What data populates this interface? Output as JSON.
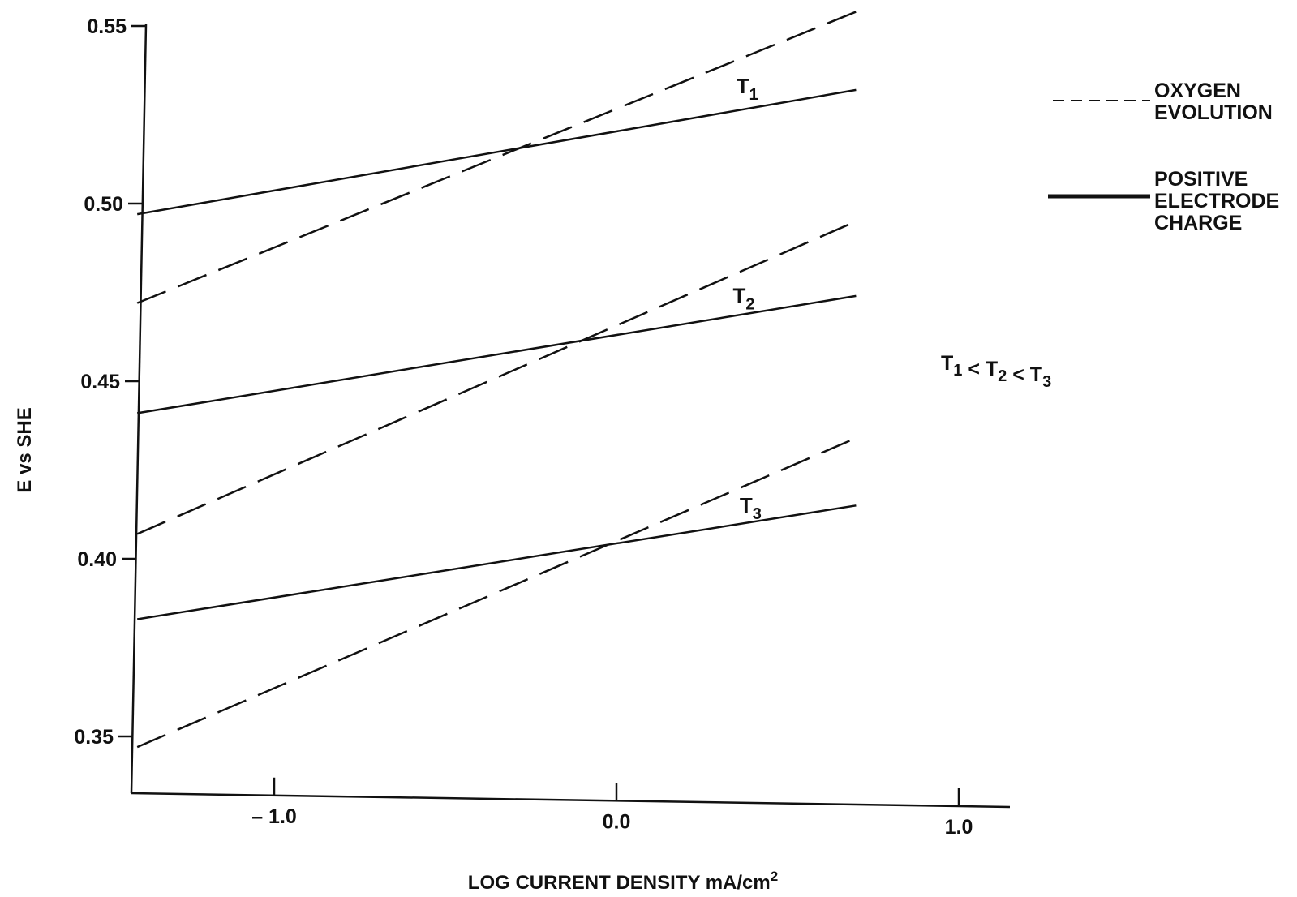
{
  "chart_data": {
    "type": "line",
    "xlabel": "LOG CURRENT DENSITY mA/cm",
    "xlabel_superscript": "2",
    "ylabel": "E vs SHE",
    "xlim": [
      -1.4,
      1.1
    ],
    "ylim": [
      0.345,
      0.55
    ],
    "x_ticks": [
      -1.0,
      0.0,
      1.0
    ],
    "x_tick_labels": [
      "– 1.0",
      "0.0",
      "1.0"
    ],
    "y_ticks": [
      0.35,
      0.4,
      0.45,
      0.5,
      0.55
    ],
    "y_tick_labels": [
      "0.35",
      "0.40",
      "0.45",
      "0.50",
      "0.55"
    ],
    "grid": false,
    "legend_placement": "right",
    "legend": [
      {
        "style": "dashed",
        "lines": [
          "OXYGEN",
          "EVOLUTION"
        ]
      },
      {
        "style": "solid",
        "lines": [
          "POSITIVE",
          "ELECTRODE",
          "CHARGE"
        ]
      }
    ],
    "annotation": {
      "parts": [
        {
          "t": "T",
          "sub": "1"
        },
        {
          "t": " < T",
          "sub": "2"
        },
        {
          "t": " < T",
          "sub": "3"
        }
      ]
    },
    "series": [
      {
        "name": "T1",
        "label": "T",
        "label_sub": "1",
        "style": "solid",
        "x": [
          -1.4,
          0.7
        ],
        "y": [
          0.497,
          0.532
        ],
        "label_at": [
          0.35,
          0.531
        ]
      },
      {
        "name": "T1",
        "style": "dashed",
        "x": [
          -1.4,
          0.7
        ],
        "y": [
          0.472,
          0.554
        ]
      },
      {
        "name": "T2",
        "label": "T",
        "label_sub": "2",
        "style": "solid",
        "x": [
          -1.4,
          0.7
        ],
        "y": [
          0.441,
          0.474
        ],
        "label_at": [
          0.34,
          0.472
        ]
      },
      {
        "name": "T2",
        "style": "dashed",
        "x": [
          -1.4,
          0.7
        ],
        "y": [
          0.407,
          0.495
        ]
      },
      {
        "name": "T3",
        "label": "T",
        "label_sub": "3",
        "style": "solid",
        "x": [
          -1.4,
          0.7
        ],
        "y": [
          0.383,
          0.415
        ],
        "label_at": [
          0.36,
          0.413
        ]
      },
      {
        "name": "T3",
        "style": "dashed",
        "x": [
          -1.4,
          0.7
        ],
        "y": [
          0.347,
          0.434
        ]
      }
    ]
  }
}
